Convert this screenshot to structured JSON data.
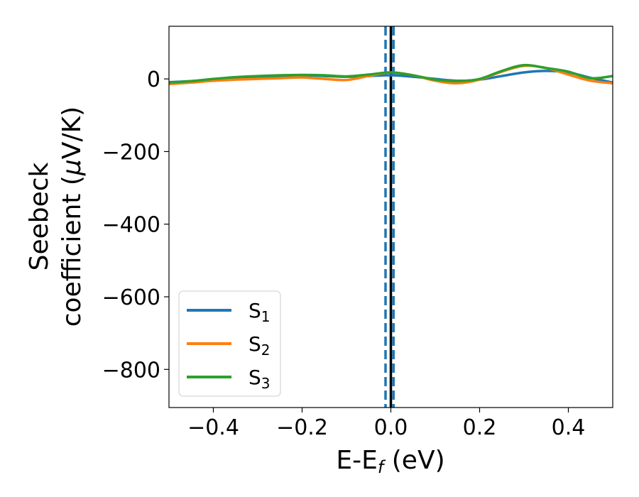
{
  "chart_data": {
    "type": "line",
    "xlabel": "E-E",
    "xlabel_sub": "f",
    "xlabel_unit": " (eV)",
    "ylabel_line1": "Seebeck",
    "ylabel_line2": "coefficient  (",
    "ylabel_mu": "μ",
    "ylabel_unit": "V/K)",
    "xlim": [
      -0.5,
      0.5
    ],
    "ylim": [
      -905,
      145
    ],
    "xticks": [
      -0.4,
      -0.2,
      0.0,
      0.2,
      0.4
    ],
    "xtick_labels": [
      "−0.4",
      "−0.2",
      "0.0",
      "0.2",
      "0.4"
    ],
    "yticks": [
      0,
      -200,
      -400,
      -600,
      -800
    ],
    "ytick_labels": [
      "0",
      "−200",
      "−400",
      "−600",
      "−800"
    ],
    "grid": false,
    "legend_position": "lower-left",
    "vlines": [
      {
        "x": 0.0,
        "color": "#000000",
        "style": "solid"
      },
      {
        "x": -0.012,
        "color": "#1f77b4",
        "style": "dashed"
      },
      {
        "x": 0.006,
        "color": "#1f77b4",
        "style": "dashed"
      }
    ],
    "series": [
      {
        "name": "S",
        "sub": "1",
        "color": "#1f77b4",
        "x": [
          -0.5,
          -0.45,
          -0.4,
          -0.35,
          -0.3,
          -0.25,
          -0.2,
          -0.15,
          -0.1,
          -0.05,
          0.0,
          0.05,
          0.1,
          0.15,
          0.2,
          0.25,
          0.3,
          0.35,
          0.4,
          0.45,
          0.5
        ],
        "y": [
          -9,
          -6,
          -2,
          2,
          5,
          8,
          10,
          8,
          6,
          8,
          10,
          6,
          0,
          -5,
          -2,
          8,
          18,
          22,
          18,
          3,
          -10
        ]
      },
      {
        "name": "S",
        "sub": "2",
        "color": "#ff7f0e",
        "x": [
          -0.5,
          -0.45,
          -0.4,
          -0.35,
          -0.3,
          -0.25,
          -0.2,
          -0.15,
          -0.1,
          -0.05,
          0.0,
          0.05,
          0.1,
          0.15,
          0.2,
          0.25,
          0.3,
          0.35,
          0.4,
          0.45,
          0.5
        ],
        "y": [
          -14,
          -10,
          -5,
          -2,
          0,
          2,
          4,
          0,
          -3,
          8,
          18,
          10,
          -5,
          -12,
          -2,
          20,
          36,
          30,
          12,
          -5,
          -12
        ]
      },
      {
        "name": "S",
        "sub": "3",
        "color": "#2ca02c",
        "x": [
          -0.5,
          -0.45,
          -0.4,
          -0.35,
          -0.3,
          -0.25,
          -0.2,
          -0.15,
          -0.1,
          -0.05,
          0.0,
          0.05,
          0.1,
          0.15,
          0.2,
          0.25,
          0.3,
          0.35,
          0.4,
          0.45,
          0.5
        ],
        "y": [
          -10,
          -6,
          0,
          5,
          8,
          10,
          11,
          10,
          7,
          12,
          18,
          10,
          -2,
          -6,
          0,
          22,
          38,
          30,
          20,
          2,
          8
        ]
      }
    ]
  }
}
